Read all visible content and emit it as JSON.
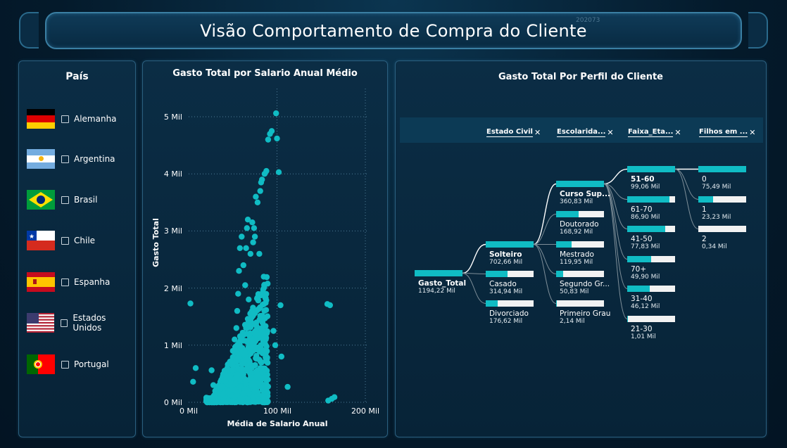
{
  "header": {
    "title": "Visão Comportamento de Compra do Cliente",
    "ghost": "202073"
  },
  "country_slicer": {
    "title": "País",
    "items": [
      {
        "label": "Alemanha",
        "flag": "germany-flag"
      },
      {
        "label": "Argentina",
        "flag": "argentina-flag"
      },
      {
        "label": "Brasil",
        "flag": "brazil-flag"
      },
      {
        "label": "Chile",
        "flag": "chile-flag"
      },
      {
        "label": "Espanha",
        "flag": "spain-flag"
      },
      {
        "label": "Estados Unidos",
        "flag": "usa-flag"
      },
      {
        "label": "Portugal",
        "flag": "portugal-flag"
      }
    ]
  },
  "scatter": {
    "title": "Gasto Total por Salario Anual Médio",
    "xlabel": "Média de Salario Anual",
    "ylabel": "Gasto Total",
    "x_ticks": [
      "0 Mil",
      "100 Mil",
      "200 Mil"
    ],
    "y_ticks": [
      "0 Mil",
      "1 Mil",
      "2 Mil",
      "3 Mil",
      "4 Mil",
      "5 Mil"
    ]
  },
  "chart_data": {
    "type": "scatter",
    "title": "Gasto Total por Salario Anual Médio",
    "xlabel": "Média de Salario Anual",
    "ylabel": "Gasto Total",
    "xlim": [
      0,
      200000
    ],
    "ylim": [
      0,
      5000
    ],
    "grid": true,
    "color": "#10bcc4",
    "points": [
      [
        2000,
        1730
      ],
      [
        5000,
        360
      ],
      [
        8000,
        600
      ],
      [
        20000,
        80
      ],
      [
        26000,
        560
      ],
      [
        28000,
        300
      ],
      [
        30000,
        200
      ],
      [
        35000,
        150
      ],
      [
        40000,
        380
      ],
      [
        45000,
        450
      ],
      [
        48000,
        700
      ],
      [
        50000,
        900
      ],
      [
        52000,
        1100
      ],
      [
        54000,
        1300
      ],
      [
        55000,
        1600
      ],
      [
        56000,
        1900
      ],
      [
        57000,
        2300
      ],
      [
        58000,
        2700
      ],
      [
        60000,
        2900
      ],
      [
        62000,
        2400
      ],
      [
        64000,
        2050
      ],
      [
        65000,
        2700
      ],
      [
        66000,
        3050
      ],
      [
        67000,
        3200
      ],
      [
        68000,
        1800
      ],
      [
        70000,
        2600
      ],
      [
        72000,
        3150
      ],
      [
        73000,
        2800
      ],
      [
        74000,
        3050
      ],
      [
        75000,
        2900
      ],
      [
        76000,
        3600
      ],
      [
        78000,
        3500
      ],
      [
        80000,
        2600
      ],
      [
        81000,
        3700
      ],
      [
        82000,
        3850
      ],
      [
        83000,
        3900
      ],
      [
        85000,
        2200
      ],
      [
        86000,
        4000
      ],
      [
        88000,
        4050
      ],
      [
        90000,
        4600
      ],
      [
        92000,
        4700
      ],
      [
        94000,
        4750
      ],
      [
        96000,
        1250
      ],
      [
        98000,
        1000
      ],
      [
        99000,
        5060
      ],
      [
        100000,
        4620
      ],
      [
        102000,
        4030
      ],
      [
        104000,
        1700
      ],
      [
        105000,
        800
      ],
      [
        112000,
        270
      ],
      [
        157000,
        1720
      ],
      [
        160000,
        1700
      ],
      [
        158000,
        30
      ],
      [
        162000,
        60
      ],
      [
        165000,
        90
      ]
    ],
    "cluster_note": "dense cloud from 20000 to 90000 salary, 0 to 2300 spend"
  },
  "tree": {
    "title": "Gasto Total Por Perfil do Cliente",
    "headers": [
      {
        "label": "Estado Civil"
      },
      {
        "label": "Escolarida..."
      },
      {
        "label": "Faixa_Eta..."
      },
      {
        "label": "Filhos em ..."
      }
    ],
    "root": {
      "label": "Gasto_Total",
      "value": "1194,22 Mil",
      "fill": 1.0
    },
    "level1": [
      {
        "label": "Solteiro",
        "value": "702,66 Mil",
        "fill": 1.0
      },
      {
        "label": "Casado",
        "value": "314,94 Mil",
        "fill": 0.45
      },
      {
        "label": "Divorciado",
        "value": "176,62 Mil",
        "fill": 0.25
      }
    ],
    "level2": [
      {
        "label": "Curso Sup...",
        "value": "360,83 Mil",
        "fill": 1.0
      },
      {
        "label": "Doutorado",
        "value": "168,92 Mil",
        "fill": 0.47
      },
      {
        "label": "Mestrado",
        "value": "119,95 Mil",
        "fill": 0.33
      },
      {
        "label": "Segundo Gr...",
        "value": "50,83 Mil",
        "fill": 0.14
      },
      {
        "label": "Primeiro Grau",
        "value": "2,14 Mil",
        "fill": 0.01
      }
    ],
    "level3": [
      {
        "label": "51-60",
        "value": "99,06 Mil",
        "fill": 1.0
      },
      {
        "label": "61-70",
        "value": "86,90 Mil",
        "fill": 0.88
      },
      {
        "label": "41-50",
        "value": "77,83 Mil",
        "fill": 0.79
      },
      {
        "label": "70+",
        "value": "49,90 Mil",
        "fill": 0.5
      },
      {
        "label": "31-40",
        "value": "46,12 Mil",
        "fill": 0.47
      },
      {
        "label": "21-30",
        "value": "1,01 Mil",
        "fill": 0.01
      }
    ],
    "level4": [
      {
        "label": "0",
        "value": "75,49 Mil",
        "fill": 1.0
      },
      {
        "label": "1",
        "value": "23,23 Mil",
        "fill": 0.31
      },
      {
        "label": "2",
        "value": "0,34 Mil",
        "fill": 0.0
      }
    ]
  }
}
